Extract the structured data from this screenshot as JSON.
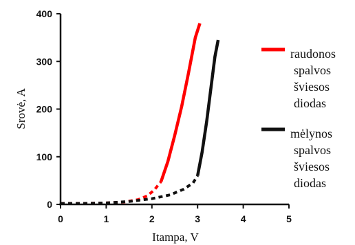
{
  "chart_data": {
    "type": "line",
    "xlabel": "Itampa, V",
    "ylabel": "Srovė, A",
    "xlim": [
      0,
      5
    ],
    "ylim": [
      0,
      400
    ],
    "x_ticks": [
      0,
      1,
      2,
      3,
      4,
      5
    ],
    "y_ticks": [
      0,
      100,
      200,
      300,
      400
    ],
    "grid": false,
    "legend_position": "right",
    "series": [
      {
        "name": "raudonos spalvos šviesos diodas",
        "color": "#ff0000",
        "dashed_points": [
          [
            0,
            2
          ],
          [
            0.5,
            2
          ],
          [
            1,
            3
          ],
          [
            1.4,
            5
          ],
          [
            1.7,
            10
          ],
          [
            1.9,
            18
          ],
          [
            2.05,
            30
          ],
          [
            2.2,
            48
          ]
        ],
        "solid_points": [
          [
            2.2,
            48
          ],
          [
            2.35,
            90
          ],
          [
            2.5,
            145
          ],
          [
            2.65,
            205
          ],
          [
            2.8,
            275
          ],
          [
            2.95,
            350
          ],
          [
            3.05,
            380
          ]
        ]
      },
      {
        "name": "mėlynos spalvos šviesos diodas",
        "color": "#111111",
        "dashed_points": [
          [
            0,
            2
          ],
          [
            0.5,
            2
          ],
          [
            1,
            3
          ],
          [
            1.5,
            6
          ],
          [
            2,
            12
          ],
          [
            2.4,
            20
          ],
          [
            2.7,
            32
          ],
          [
            2.9,
            45
          ],
          [
            3.0,
            60
          ]
        ],
        "solid_points": [
          [
            3.0,
            60
          ],
          [
            3.1,
            110
          ],
          [
            3.2,
            175
          ],
          [
            3.3,
            250
          ],
          [
            3.38,
            310
          ],
          [
            3.45,
            345
          ]
        ]
      }
    ]
  }
}
